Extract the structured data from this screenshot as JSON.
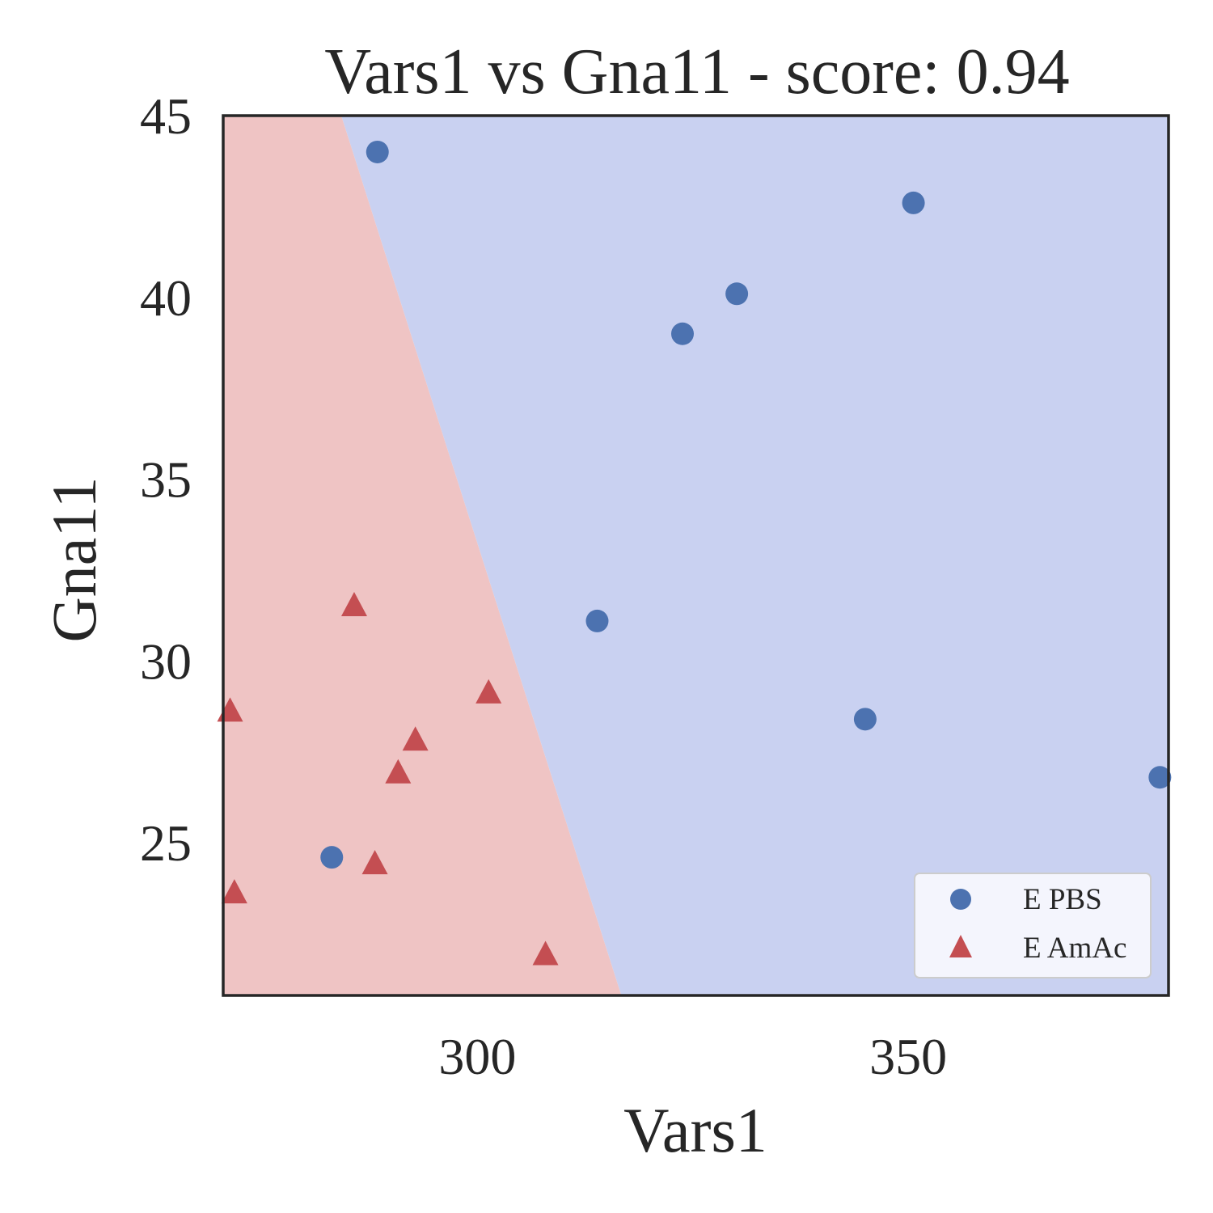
{
  "chart_data": {
    "type": "scatter",
    "title": "Vars1 vs Gna11 - score: 0.94",
    "xlabel": "Vars1",
    "ylabel": "Gna11",
    "xlim": [
      270.5,
      380.2
    ],
    "ylim": [
      20.8,
      45.0
    ],
    "xticks": [
      300,
      350
    ],
    "yticks": [
      25,
      30,
      35,
      40,
      45
    ],
    "grid": false,
    "legend_position": "lower-right",
    "decision_regions": {
      "boundary": [
        [
          284.2,
          45.0
        ],
        [
          316.7,
          20.8
        ]
      ],
      "left_class": "E AmAc",
      "right_class": "E PBS",
      "colors": {
        "E PBS": "#c9d1f1",
        "E AmAc": "#efc4c4"
      }
    },
    "series": [
      {
        "name": "E PBS",
        "marker": "circle",
        "color": "#4c72b0",
        "points": [
          [
            288.4,
            44.0
          ],
          [
            350.6,
            42.6
          ],
          [
            330.1,
            40.1
          ],
          [
            323.8,
            39.0
          ],
          [
            313.9,
            31.1
          ],
          [
            345.0,
            28.4
          ],
          [
            379.2,
            26.8
          ],
          [
            283.1,
            24.6
          ]
        ]
      },
      {
        "name": "E AmAc",
        "marker": "triangle",
        "color": "#c44e52",
        "points": [
          [
            285.7,
            31.5
          ],
          [
            271.3,
            28.6
          ],
          [
            301.3,
            29.1
          ],
          [
            292.8,
            27.8
          ],
          [
            290.8,
            26.9
          ],
          [
            288.1,
            24.4
          ],
          [
            271.8,
            23.6
          ],
          [
            307.9,
            21.9
          ]
        ]
      }
    ]
  }
}
